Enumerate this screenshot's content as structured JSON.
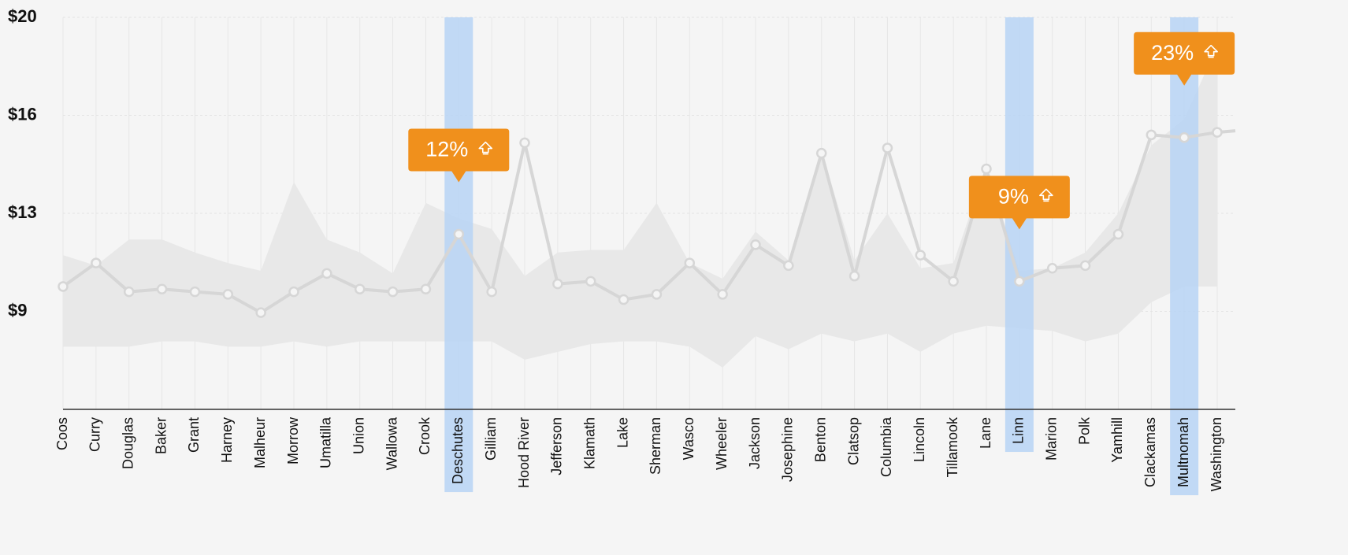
{
  "chart_data": {
    "type": "line",
    "categories": [
      "Coos",
      "Curry",
      "Douglas",
      "Baker",
      "Grant",
      "Harney",
      "Malheur",
      "Morrow",
      "Umatilla",
      "Union",
      "Wallowa",
      "Crook",
      "Deschutes",
      "Gilliam",
      "Hood River",
      "Jefferson",
      "Klamath",
      "Lake",
      "Sherman",
      "Wasco",
      "Wheeler",
      "Jackson",
      "Josephine",
      "Benton",
      "Clatsop",
      "Columbia",
      "Lincoln",
      "Tillamook",
      "Lane",
      "Linn",
      "Marion",
      "Polk",
      "Yamhill",
      "Clackamas",
      "Multnomah",
      "Washington"
    ],
    "values": [
      9.7,
      10.6,
      9.5,
      9.6,
      9.5,
      9.4,
      8.7,
      9.5,
      10.2,
      9.6,
      9.5,
      9.6,
      11.7,
      9.5,
      15.2,
      9.8,
      9.9,
      9.2,
      9.4,
      10.6,
      9.4,
      11.3,
      10.5,
      14.8,
      10.1,
      15.0,
      10.9,
      9.9,
      14.2,
      9.9,
      10.4,
      10.5,
      11.7,
      15.5,
      15.4,
      15.6
    ],
    "band_upper": [
      10.9,
      10.5,
      11.5,
      11.5,
      11.0,
      10.6,
      10.3,
      13.7,
      11.5,
      11.0,
      10.2,
      12.9,
      12.3,
      11.9,
      10.1,
      11.0,
      11.1,
      11.1,
      12.9,
      10.6,
      10.0,
      11.8,
      10.7,
      14.9,
      10.7,
      12.5,
      10.4,
      10.6,
      14.3,
      10.3,
      10.4,
      11.0,
      12.5,
      15.1,
      16.1,
      18.9
    ],
    "band_lower": [
      7.4,
      7.4,
      7.4,
      7.6,
      7.6,
      7.4,
      7.4,
      7.6,
      7.4,
      7.6,
      7.6,
      7.6,
      7.6,
      7.6,
      6.9,
      7.2,
      7.5,
      7.6,
      7.6,
      7.4,
      6.6,
      7.8,
      7.3,
      7.9,
      7.6,
      7.9,
      7.2,
      7.9,
      8.2,
      8.1,
      8.0,
      7.6,
      7.9,
      9.1,
      9.7,
      9.7
    ],
    "line_color": "#d6d6d6",
    "band_color": "#e8e8e8",
    "highlight_color": "#b7d3f4",
    "callout_color": "#f0901c",
    "ylim": [
      5,
      20
    ],
    "yticks": [
      {
        "value": 20,
        "label": "$20"
      },
      {
        "value": 16.25,
        "label": "$16"
      },
      {
        "value": 12.5,
        "label": "$13"
      },
      {
        "value": 8.75,
        "label": "$9"
      }
    ],
    "grid": true,
    "annotations": [
      {
        "category": "Deschutes",
        "text": "12%"
      },
      {
        "category": "Linn",
        "text": "9%"
      },
      {
        "category": "Multnomah",
        "text": "23%"
      }
    ]
  }
}
